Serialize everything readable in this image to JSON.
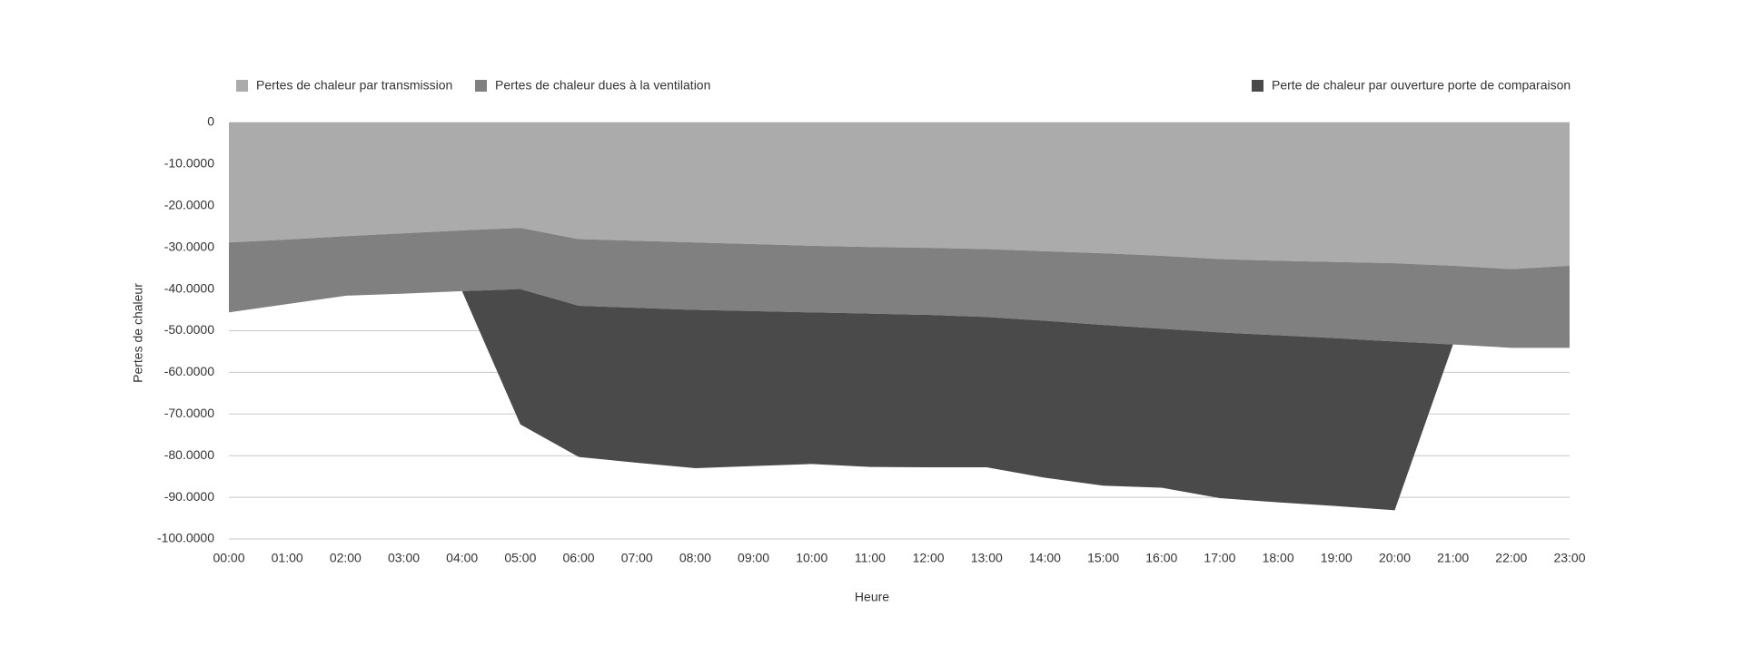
{
  "chart_data": {
    "type": "stacked-area",
    "x_label": "Heure",
    "y_label": "Pertes de chaleur",
    "categories": [
      "00:00",
      "01:00",
      "02:00",
      "03:00",
      "04:00",
      "05:00",
      "06:00",
      "07:00",
      "08:00",
      "09:00",
      "10:00",
      "11:00",
      "12:00",
      "13:00",
      "14:00",
      "15:00",
      "16:00",
      "17:00",
      "18:00",
      "19:00",
      "20:00",
      "21:00",
      "22:00",
      "23:00"
    ],
    "series": [
      {
        "name": "Pertes de chaleur par transmission",
        "color": "#ababab",
        "values": [
          -28.8,
          -28.1,
          -27.3,
          -26.6,
          -25.9,
          -25.3,
          -28.0,
          -28.4,
          -28.8,
          -29.2,
          -29.6,
          -29.9,
          -30.1,
          -30.4,
          -30.9,
          -31.4,
          -32.0,
          -32.8,
          -33.2,
          -33.5,
          -33.8,
          -34.4,
          -35.2,
          -34.4
        ]
      },
      {
        "name": "Pertes de chaleur dues à la ventilation",
        "color": "#808080",
        "values": [
          -16.8,
          -15.5,
          -14.3,
          -14.5,
          -14.6,
          -14.7,
          -16.0,
          -16.1,
          -16.2,
          -16.1,
          -16.0,
          -16.0,
          -16.1,
          -16.3,
          -16.7,
          -17.2,
          -17.5,
          -17.6,
          -17.9,
          -18.3,
          -18.8,
          -18.9,
          -18.9,
          -19.7
        ]
      },
      {
        "name": "Perte de chaleur par ouverture porte de comparaison",
        "color": "#4a4a4a",
        "values": [
          0,
          0,
          0,
          0,
          0,
          -32.5,
          -36.3,
          -37.2,
          -38.0,
          -37.2,
          -36.4,
          -36.8,
          -36.6,
          -36.1,
          -37.7,
          -38.6,
          -38.2,
          -39.8,
          -40.1,
          -40.3,
          -40.5,
          0,
          0,
          0
        ]
      }
    ],
    "ylim": [
      -100,
      0
    ],
    "yticks": [
      0,
      {
        "value": -10,
        "label": "-10.0000"
      },
      {
        "value": -20,
        "label": "-20.0000"
      },
      {
        "value": -30,
        "label": "-30.0000"
      },
      {
        "value": -40,
        "label": "-40.0000"
      },
      {
        "value": -50,
        "label": "-50.0000"
      },
      {
        "value": -60,
        "label": "-60.0000"
      },
      {
        "value": -70,
        "label": "-70.0000"
      },
      {
        "value": -80,
        "label": "-80.0000"
      },
      {
        "value": -90,
        "label": "-90.0000"
      },
      {
        "value": -100,
        "label": "-100.0000"
      }
    ],
    "grid": true
  }
}
